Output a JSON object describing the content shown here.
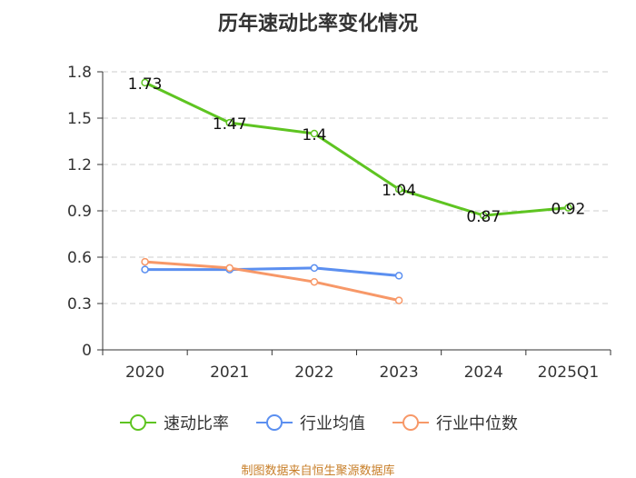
{
  "title": "历年速动比率变化情况",
  "source": "制图数据来自恒生聚源数据库",
  "colors": {
    "quick_ratio": "#5ec421",
    "industry_avg": "#5b8ff0",
    "industry_median": "#f79868",
    "grid": "#cccccc",
    "axis": "#333333"
  },
  "chart_data": {
    "type": "line",
    "title": "历年速动比率变化情况",
    "categories": [
      "2020",
      "2021",
      "2022",
      "2023",
      "2024",
      "2025Q1"
    ],
    "ylim": [
      0,
      1.8
    ],
    "yticks": [
      0,
      0.3,
      0.6,
      0.9,
      1.2,
      1.5,
      1.8
    ],
    "ytick_labels": [
      "0",
      "0.3",
      "0.6",
      "0.9",
      "1.2",
      "1.5",
      "1.8"
    ],
    "grid": true,
    "legend_position": "bottom",
    "series": [
      {
        "name": "速动比率",
        "color": "#5ec421",
        "values": [
          1.73,
          1.47,
          1.4,
          1.04,
          0.87,
          0.92
        ],
        "labels": [
          "1.73",
          "1.47",
          "1.4",
          "1.04",
          "0.87",
          "0.92"
        ]
      },
      {
        "name": "行业均值",
        "color": "#5b8ff0",
        "values": [
          0.52,
          0.52,
          0.53,
          0.48,
          null,
          null
        ]
      },
      {
        "name": "行业中位数",
        "color": "#f79868",
        "values": [
          0.57,
          0.53,
          0.44,
          0.32,
          null,
          null
        ]
      }
    ]
  }
}
